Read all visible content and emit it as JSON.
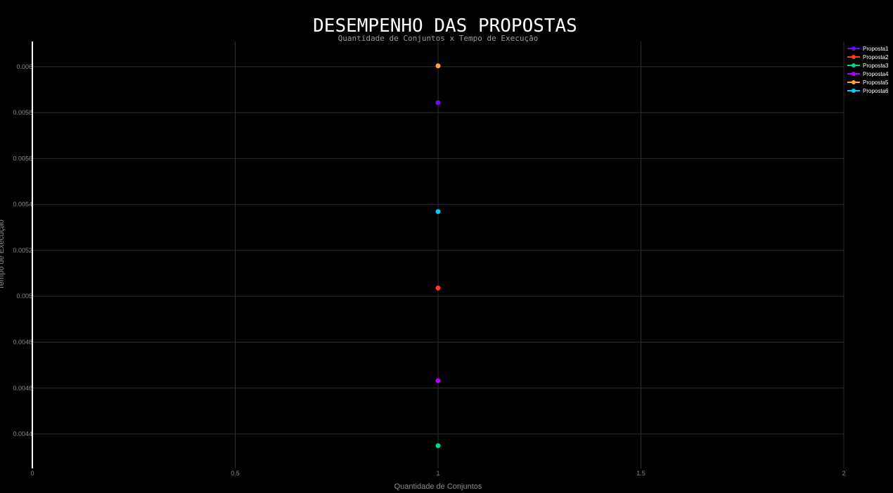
{
  "chart_data": {
    "type": "scatter",
    "title": "DESEMPENHO DAS PROPOSTAS",
    "subtitle": "Quantidade de Conjuntos x Tempo de Execução",
    "xlabel": "Quantidade de Conjuntos",
    "ylabel": "Tempo de Execução",
    "xlim": [
      0,
      2
    ],
    "ylim": [
      0.00425,
      0.00611
    ],
    "x_ticks": [
      0,
      0.5,
      1,
      1.5,
      2
    ],
    "x_tick_labels": [
      "0",
      "0.5",
      "1",
      "1.5",
      "2"
    ],
    "y_ticks": [
      0.0044,
      0.0046,
      0.0048,
      0.005,
      0.0052,
      0.0054,
      0.0056,
      0.0058,
      0.006
    ],
    "y_tick_labels": [
      "0.0044",
      "0.0046",
      "0.0048",
      "0.005",
      "0.0052",
      "0.0054",
      "0.0056",
      "0.0058",
      "0.006"
    ],
    "grid": true,
    "legend_position": "top-right",
    "series": [
      {
        "name": "Proposta1",
        "color": "#6a0dff",
        "x": [
          1
        ],
        "y": [
          0.005843
        ]
      },
      {
        "name": "Proposta2",
        "color": "#ff3b1f",
        "x": [
          1
        ],
        "y": [
          0.005036
        ]
      },
      {
        "name": "Proposta3",
        "color": "#00d68f",
        "x": [
          1
        ],
        "y": [
          0.004349
        ]
      },
      {
        "name": "Proposta4",
        "color": "#b300ff",
        "x": [
          1
        ],
        "y": [
          0.004632
        ]
      },
      {
        "name": "Proposta5",
        "color": "#ffa040",
        "x": [
          1
        ],
        "y": [
          0.006004
        ]
      },
      {
        "name": "Proposta6",
        "color": "#00ccff",
        "x": [
          1
        ],
        "y": [
          0.005369
        ]
      }
    ]
  }
}
